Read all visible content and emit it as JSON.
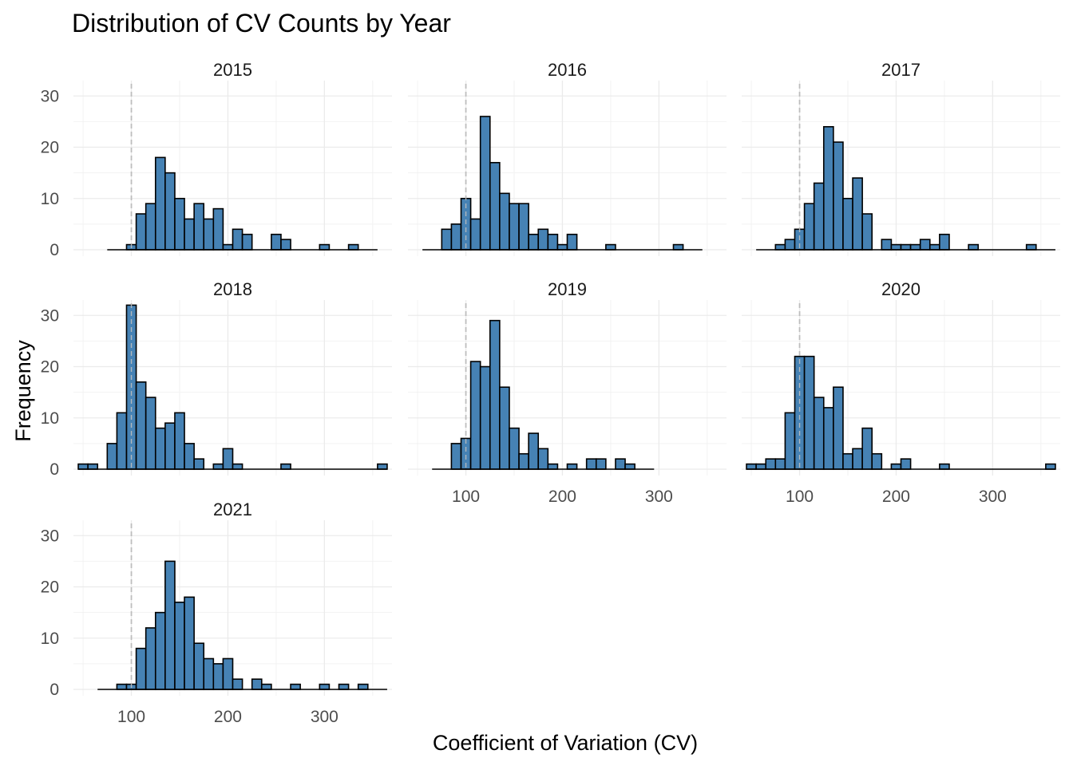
{
  "chart_data": {
    "type": "bar",
    "title": "Distribution of CV Counts by Year",
    "xlabel": "Coefficient of Variation (CV)",
    "ylabel": "Frequency",
    "bar_fill": "#4682b4",
    "bar_stroke": "#000000",
    "reference_line_x": 100,
    "reference_line_color": "#bdbdbd",
    "grid": true,
    "x_ticks": [
      100,
      200,
      300
    ],
    "y_ticks": [
      0,
      10,
      20,
      30
    ],
    "xlim": [
      40,
      370
    ],
    "ylim": [
      0,
      33
    ],
    "bin_width": 10,
    "bin_starts": [
      45,
      55,
      65,
      75,
      85,
      95,
      105,
      115,
      125,
      135,
      145,
      155,
      165,
      175,
      185,
      195,
      205,
      215,
      225,
      235,
      245,
      255,
      265,
      275,
      285,
      295,
      305,
      315,
      325,
      335,
      345,
      355
    ],
    "panels": [
      {
        "label": "2015",
        "counts": [
          0,
          0,
          0,
          0,
          0,
          1,
          7,
          9,
          18,
          15,
          10,
          6,
          9,
          6,
          8,
          1,
          4,
          3,
          0,
          0,
          3,
          2,
          0,
          0,
          0,
          1,
          0,
          0,
          1,
          0,
          0,
          0
        ]
      },
      {
        "label": "2016",
        "counts": [
          0,
          0,
          0,
          4,
          5,
          10,
          6,
          26,
          17,
          11,
          9,
          9,
          3,
          4,
          3,
          1,
          3,
          0,
          0,
          0,
          1,
          0,
          0,
          0,
          0,
          0,
          0,
          1,
          0,
          0,
          0,
          0
        ]
      },
      {
        "label": "2017",
        "counts": [
          0,
          0,
          0,
          1,
          2,
          4,
          9,
          13,
          24,
          21,
          10,
          14,
          7,
          0,
          2,
          1,
          1,
          1,
          2,
          1,
          3,
          0,
          0,
          1,
          0,
          0,
          0,
          0,
          0,
          1,
          0,
          0
        ]
      },
      {
        "label": "2018",
        "counts": [
          1,
          1,
          0,
          5,
          11,
          32,
          17,
          14,
          8,
          9,
          11,
          5,
          2,
          0,
          1,
          4,
          1,
          0,
          0,
          0,
          0,
          1,
          0,
          0,
          0,
          0,
          0,
          0,
          0,
          0,
          0,
          1
        ]
      },
      {
        "label": "2019",
        "counts": [
          0,
          0,
          0,
          0,
          5,
          6,
          21,
          20,
          29,
          16,
          8,
          3,
          7,
          4,
          1,
          0,
          1,
          0,
          2,
          2,
          0,
          2,
          1,
          0,
          0,
          0,
          0,
          0,
          0,
          0,
          0,
          0
        ]
      },
      {
        "label": "2020",
        "counts": [
          1,
          1,
          2,
          2,
          11,
          22,
          22,
          14,
          12,
          16,
          3,
          4,
          8,
          3,
          0,
          1,
          2,
          0,
          0,
          0,
          1,
          0,
          0,
          0,
          0,
          0,
          0,
          0,
          0,
          0,
          0,
          1
        ]
      },
      {
        "label": "2021",
        "counts": [
          0,
          0,
          0,
          0,
          1,
          1,
          8,
          12,
          15,
          25,
          17,
          18,
          9,
          6,
          5,
          6,
          2,
          0,
          2,
          1,
          0,
          0,
          1,
          0,
          0,
          1,
          0,
          1,
          0,
          1,
          0,
          0
        ]
      }
    ]
  }
}
